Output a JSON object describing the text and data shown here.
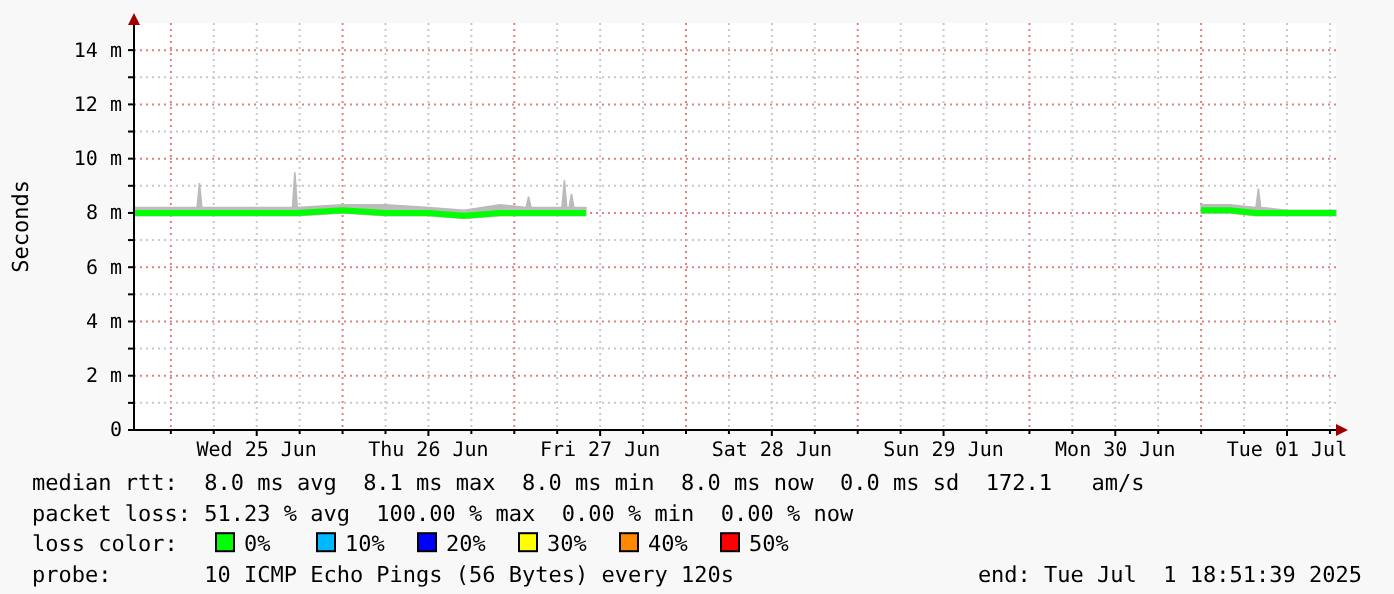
{
  "chart_data": {
    "type": "line",
    "ylabel": "Seconds",
    "xlim": [
      "2025-06-24T18:51",
      "2025-07-01T18:51"
    ],
    "xticks": [
      {
        "value": "2025-06-25T00:00",
        "label": null
      },
      {
        "value": "2025-06-25T06:00",
        "label": null
      },
      {
        "value": "2025-06-25T12:00",
        "label": "Wed 25 Jun"
      },
      {
        "value": "2025-06-25T18:00",
        "label": null
      },
      {
        "value": "2025-06-26T00:00",
        "label": null
      },
      {
        "value": "2025-06-26T06:00",
        "label": null
      },
      {
        "value": "2025-06-26T12:00",
        "label": "Thu 26 Jun"
      },
      {
        "value": "2025-06-26T18:00",
        "label": null
      },
      {
        "value": "2025-06-27T00:00",
        "label": null
      },
      {
        "value": "2025-06-27T06:00",
        "label": null
      },
      {
        "value": "2025-06-27T12:00",
        "label": "Fri 27 Jun"
      },
      {
        "value": "2025-06-27T18:00",
        "label": null
      },
      {
        "value": "2025-06-28T00:00",
        "label": null
      },
      {
        "value": "2025-06-28T06:00",
        "label": null
      },
      {
        "value": "2025-06-28T12:00",
        "label": "Sat 28 Jun"
      },
      {
        "value": "2025-06-28T18:00",
        "label": null
      },
      {
        "value": "2025-06-29T00:00",
        "label": null
      },
      {
        "value": "2025-06-29T06:00",
        "label": null
      },
      {
        "value": "2025-06-29T12:00",
        "label": "Sun 29 Jun"
      },
      {
        "value": "2025-06-29T18:00",
        "label": null
      },
      {
        "value": "2025-06-30T00:00",
        "label": null
      },
      {
        "value": "2025-06-30T06:00",
        "label": null
      },
      {
        "value": "2025-06-30T12:00",
        "label": "Mon 30 Jun"
      },
      {
        "value": "2025-06-30T18:00",
        "label": null
      },
      {
        "value": "2025-07-01T00:00",
        "label": null
      },
      {
        "value": "2025-07-01T06:00",
        "label": null
      },
      {
        "value": "2025-07-01T12:00",
        "label": "Tue 01 Jul"
      },
      {
        "value": "2025-07-01T18:00",
        "label": null
      }
    ],
    "ylim": [
      0,
      15
    ],
    "yticks": [
      {
        "value": 0,
        "label": "0"
      },
      {
        "value": 1,
        "label": null
      },
      {
        "value": 2,
        "label": "2 m"
      },
      {
        "value": 3,
        "label": null
      },
      {
        "value": 4,
        "label": "4 m"
      },
      {
        "value": 5,
        "label": null
      },
      {
        "value": 6,
        "label": "6 m"
      },
      {
        "value": 7,
        "label": null
      },
      {
        "value": 8,
        "label": "8 m"
      },
      {
        "value": 9,
        "label": null
      },
      {
        "value": 10,
        "label": "10 m"
      },
      {
        "value": 11,
        "label": null
      },
      {
        "value": 12,
        "label": "12 m"
      },
      {
        "value": 13,
        "label": null
      },
      {
        "value": 14,
        "label": "14 m"
      }
    ],
    "grid": true,
    "series": [
      {
        "color": "#00ff00",
        "x": [
          "2025-06-24T19:00",
          "2025-06-25T03:40",
          "2025-06-25T04:00",
          "2025-06-25T04:20",
          "2025-06-25T17:00",
          "2025-06-25T17:20",
          "2025-06-25T17:40",
          "2025-06-26T00:00",
          "2025-06-26T06:00",
          "2025-06-26T12:00",
          "2025-06-26T17:00",
          "2025-06-26T22:00",
          "2025-06-27T01:40",
          "2025-06-27T02:00",
          "2025-06-27T02:20",
          "2025-06-27T06:40",
          "2025-06-27T07:00",
          "2025-06-27T07:20",
          "2025-06-27T07:40",
          "2025-06-27T08:00",
          "2025-06-27T08:20",
          "2025-06-27T10:00",
          "2025-06-28T12:00",
          "2025-07-01T00:00",
          "2025-07-01T04:00",
          "2025-07-01T07:40",
          "2025-07-01T08:00",
          "2025-07-01T08:20",
          "2025-07-01T12:00",
          "2025-07-01T18:50"
        ],
        "values": [
          8.0,
          8.0,
          8.0,
          8.0,
          8.0,
          8.0,
          8.0,
          8.1,
          8.0,
          8.0,
          7.9,
          8.0,
          8.0,
          8.0,
          8.0,
          8.0,
          8.0,
          8.0,
          8.0,
          8.0,
          8.0,
          8.0,
          null,
          8.1,
          8.1,
          8.0,
          8.0,
          8.0,
          8.0,
          8.0
        ],
        "lower": [
          7.9,
          7.9,
          7.9,
          7.9,
          7.9,
          7.9,
          7.9,
          8.0,
          7.9,
          7.9,
          7.8,
          7.9,
          7.9,
          7.9,
          7.9,
          7.9,
          7.9,
          7.9,
          7.9,
          7.9,
          7.9,
          7.9,
          null,
          8.0,
          8.0,
          7.9,
          7.9,
          7.9,
          7.9,
          7.9
        ],
        "upper": [
          8.2,
          8.2,
          9.1,
          8.2,
          8.2,
          9.5,
          8.2,
          8.3,
          8.3,
          8.2,
          8.1,
          8.3,
          8.2,
          8.6,
          8.2,
          8.2,
          9.2,
          8.2,
          8.2,
          8.7,
          8.2,
          8.2,
          null,
          8.3,
          8.3,
          8.2,
          8.9,
          8.2,
          8.1,
          8.1
        ]
      }
    ],
    "annotations": [
      "median rtt:  8.0 ms avg  8.1 ms max  8.0 ms min  8.0 ms now  0.0 ms sd  172.1   am/s",
      "packet loss: 51.23 % avg  100.00 % max  0.00 % min  0.00 % now",
      "loss color:",
      "0%",
      "10%",
      "20%",
      "30%",
      "40%",
      "50%",
      "probe:       10 ICMP Echo Pings (56 Bytes) every 120s",
      "end: Tue Jul  1 18:51:39 2025"
    ]
  }
}
